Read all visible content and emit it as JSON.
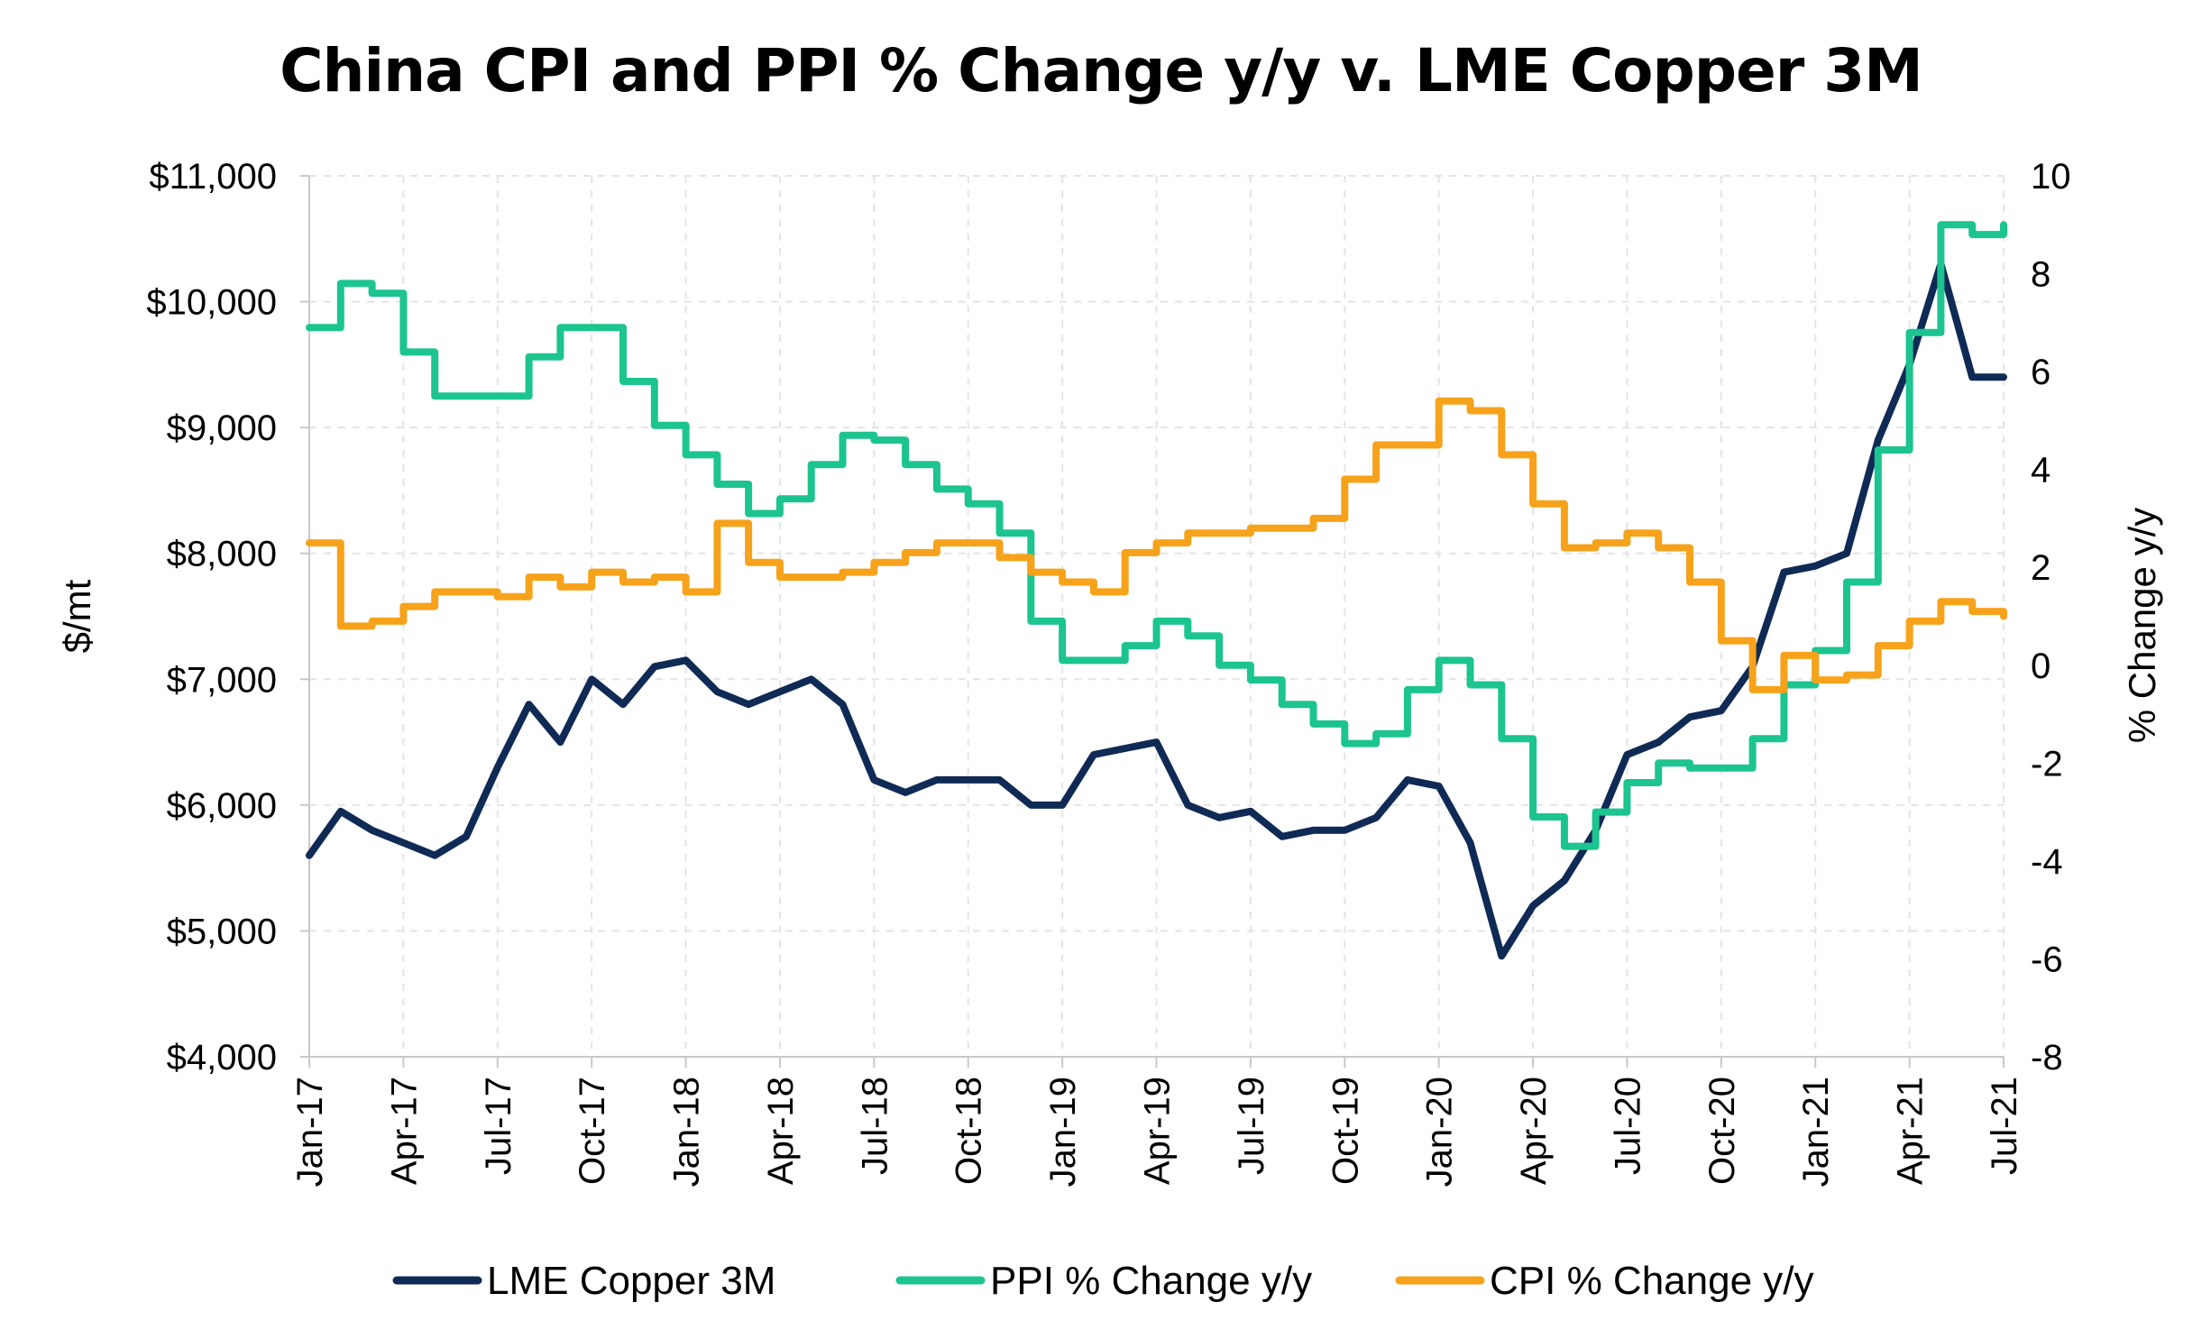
{
  "chart_data": {
    "type": "line",
    "title": "China CPI and PPI % Change y/y v. LME Copper 3M",
    "ylabel_left": "$/mt",
    "ylabel_right": "% Change y/y",
    "y_left_range": [
      4000,
      11000
    ],
    "y_left_ticks": [
      "$4,000",
      "$5,000",
      "$6,000",
      "$7,000",
      "$8,000",
      "$9,000",
      "$10,000",
      "$11,000"
    ],
    "y_right_range": [
      -8,
      10
    ],
    "y_right_ticks": [
      "-8",
      "-6",
      "-4",
      "-2",
      "0",
      "2",
      "4",
      "6",
      "8",
      "10"
    ],
    "x_range": [
      "2017-01",
      "2021-07"
    ],
    "x_ticks": [
      "Jan-17",
      "Apr-17",
      "Jul-17",
      "Oct-17",
      "Jan-18",
      "Apr-18",
      "Jul-18",
      "Oct-18",
      "Jan-19",
      "Apr-19",
      "Jul-19",
      "Oct-19",
      "Jan-20",
      "Apr-20",
      "Jul-20",
      "Oct-20",
      "Jan-21",
      "Apr-21",
      "Jul-21"
    ],
    "grid": "dashed",
    "legend_position": "bottom",
    "series": [
      {
        "name": "LME Copper 3M",
        "axis": "left",
        "color": "#0f2a55",
        "x": [
          "2017-01",
          "2017-02",
          "2017-03",
          "2017-04",
          "2017-05",
          "2017-06",
          "2017-07",
          "2017-08",
          "2017-09",
          "2017-10",
          "2017-11",
          "2017-12",
          "2018-01",
          "2018-02",
          "2018-03",
          "2018-04",
          "2018-05",
          "2018-06",
          "2018-07",
          "2018-08",
          "2018-09",
          "2018-10",
          "2018-11",
          "2018-12",
          "2019-01",
          "2019-02",
          "2019-03",
          "2019-04",
          "2019-05",
          "2019-06",
          "2019-07",
          "2019-08",
          "2019-09",
          "2019-10",
          "2019-11",
          "2019-12",
          "2020-01",
          "2020-02",
          "2020-03",
          "2020-04",
          "2020-05",
          "2020-06",
          "2020-07",
          "2020-08",
          "2020-09",
          "2020-10",
          "2020-11",
          "2020-12",
          "2021-01",
          "2021-02",
          "2021-03",
          "2021-04",
          "2021-05",
          "2021-06",
          "2021-07"
        ],
        "values": [
          5600,
          5950,
          5800,
          5700,
          5600,
          5750,
          6300,
          6800,
          6500,
          7000,
          6800,
          7100,
          7150,
          6900,
          6800,
          6900,
          7000,
          6800,
          6200,
          6100,
          6200,
          6200,
          6200,
          6000,
          6000,
          6400,
          6450,
          6500,
          6000,
          5900,
          5950,
          5750,
          5800,
          5800,
          5900,
          6200,
          6150,
          5700,
          4800,
          5200,
          5400,
          5800,
          6400,
          6500,
          6700,
          6750,
          7100,
          7850,
          7900,
          8000,
          8900,
          9500,
          10300,
          9400,
          9400
        ]
      },
      {
        "name": "PPI % Change y/y",
        "axis": "right",
        "color": "#1cc48f",
        "x": [
          "2017-01",
          "2017-02",
          "2017-03",
          "2017-04",
          "2017-05",
          "2017-06",
          "2017-07",
          "2017-08",
          "2017-09",
          "2017-10",
          "2017-11",
          "2017-12",
          "2018-01",
          "2018-02",
          "2018-03",
          "2018-04",
          "2018-05",
          "2018-06",
          "2018-07",
          "2018-08",
          "2018-09",
          "2018-10",
          "2018-11",
          "2018-12",
          "2019-01",
          "2019-02",
          "2019-03",
          "2019-04",
          "2019-05",
          "2019-06",
          "2019-07",
          "2019-08",
          "2019-09",
          "2019-10",
          "2019-11",
          "2019-12",
          "2020-01",
          "2020-02",
          "2020-03",
          "2020-04",
          "2020-05",
          "2020-06",
          "2020-07",
          "2020-08",
          "2020-09",
          "2020-10",
          "2020-11",
          "2020-12",
          "2021-01",
          "2021-02",
          "2021-03",
          "2021-04",
          "2021-05",
          "2021-06",
          "2021-07"
        ],
        "values": [
          6.9,
          7.8,
          7.6,
          6.4,
          5.5,
          5.5,
          5.5,
          6.3,
          6.9,
          6.9,
          5.8,
          4.9,
          4.3,
          3.7,
          3.1,
          3.4,
          4.1,
          4.7,
          4.6,
          4.1,
          3.6,
          3.3,
          2.7,
          0.9,
          0.1,
          0.1,
          0.4,
          0.9,
          0.6,
          0.0,
          -0.3,
          -0.8,
          -1.2,
          -1.6,
          -1.4,
          -0.5,
          0.1,
          -0.4,
          -1.5,
          -3.1,
          -3.7,
          -3.0,
          -2.4,
          -2.0,
          -2.1,
          -2.1,
          -1.5,
          -0.4,
          0.3,
          1.7,
          4.4,
          6.8,
          9.0,
          8.8,
          9.0
        ]
      },
      {
        "name": "CPI % Change y/y",
        "axis": "right",
        "color": "#f7a21b",
        "x": [
          "2017-01",
          "2017-02",
          "2017-03",
          "2017-04",
          "2017-05",
          "2017-06",
          "2017-07",
          "2017-08",
          "2017-09",
          "2017-10",
          "2017-11",
          "2017-12",
          "2018-01",
          "2018-02",
          "2018-03",
          "2018-04",
          "2018-05",
          "2018-06",
          "2018-07",
          "2018-08",
          "2018-09",
          "2018-10",
          "2018-11",
          "2018-12",
          "2019-01",
          "2019-02",
          "2019-03",
          "2019-04",
          "2019-05",
          "2019-06",
          "2019-07",
          "2019-08",
          "2019-09",
          "2019-10",
          "2019-11",
          "2019-12",
          "2020-01",
          "2020-02",
          "2020-03",
          "2020-04",
          "2020-05",
          "2020-06",
          "2020-07",
          "2020-08",
          "2020-09",
          "2020-10",
          "2020-11",
          "2020-12",
          "2021-01",
          "2021-02",
          "2021-03",
          "2021-04",
          "2021-05",
          "2021-06",
          "2021-07"
        ],
        "values": [
          2.5,
          0.8,
          0.9,
          1.2,
          1.5,
          1.5,
          1.4,
          1.8,
          1.6,
          1.9,
          1.7,
          1.8,
          1.5,
          2.9,
          2.1,
          1.8,
          1.8,
          1.9,
          2.1,
          2.3,
          2.5,
          2.5,
          2.2,
          1.9,
          1.7,
          1.5,
          2.3,
          2.5,
          2.7,
          2.7,
          2.8,
          2.8,
          3.0,
          3.8,
          4.5,
          4.5,
          5.4,
          5.2,
          4.3,
          3.3,
          2.4,
          2.5,
          2.7,
          2.4,
          1.7,
          0.5,
          -0.5,
          0.2,
          -0.3,
          -0.2,
          0.4,
          0.9,
          1.3,
          1.1,
          1.0
        ]
      }
    ]
  }
}
